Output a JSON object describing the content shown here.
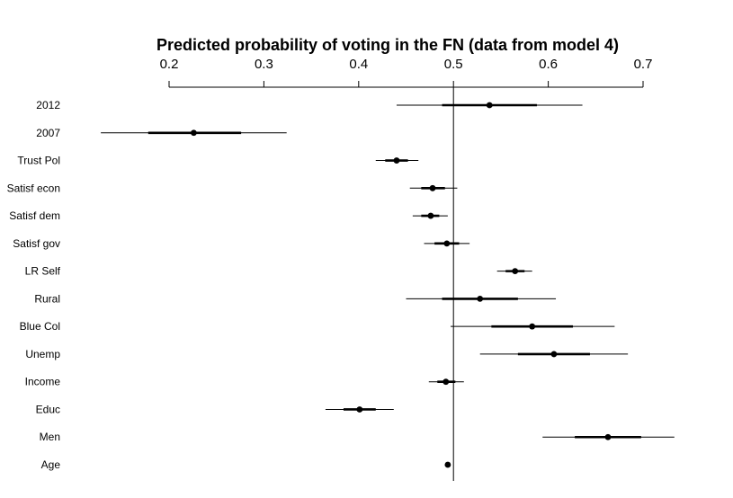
{
  "chart_data": {
    "type": "scatter",
    "subtype": "coefficient-plot",
    "title": "Predicted probability of voting in the FN (data from model 4)",
    "xlim": [
      0.2,
      0.7
    ],
    "xticks": [
      0.2,
      0.3,
      0.4,
      0.5,
      0.6,
      0.7
    ],
    "tick_labels": [
      "0.2",
      "0.3",
      "0.4",
      "0.5",
      "0.6",
      "0.7"
    ],
    "x_axis_position": "top",
    "reference_line": 0.5,
    "grid": false,
    "legend": "none",
    "colors": {
      "marks": "#000000"
    },
    "rows": [
      {
        "label": "2012",
        "estimate": 0.538,
        "ci_inner": [
          0.488,
          0.588
        ],
        "ci_outer": [
          0.44,
          0.636
        ]
      },
      {
        "label": "2007",
        "estimate": 0.226,
        "ci_inner": [
          0.178,
          0.276
        ],
        "ci_outer": [
          0.128,
          0.324
        ]
      },
      {
        "label": "Trust Pol",
        "estimate": 0.44,
        "ci_inner": [
          0.428,
          0.452
        ],
        "ci_outer": [
          0.418,
          0.463
        ]
      },
      {
        "label": "Satisf econ",
        "estimate": 0.478,
        "ci_inner": [
          0.466,
          0.491
        ],
        "ci_outer": [
          0.454,
          0.504
        ]
      },
      {
        "label": "Satisf dem",
        "estimate": 0.476,
        "ci_inner": [
          0.466,
          0.485
        ],
        "ci_outer": [
          0.457,
          0.494
        ]
      },
      {
        "label": "Satisf gov",
        "estimate": 0.493,
        "ci_inner": [
          0.48,
          0.506
        ],
        "ci_outer": [
          0.469,
          0.517
        ]
      },
      {
        "label": "LR Self",
        "estimate": 0.565,
        "ci_inner": [
          0.555,
          0.575
        ],
        "ci_outer": [
          0.546,
          0.583
        ]
      },
      {
        "label": "Rural",
        "estimate": 0.528,
        "ci_inner": [
          0.488,
          0.568
        ],
        "ci_outer": [
          0.45,
          0.608
        ]
      },
      {
        "label": "Blue Col",
        "estimate": 0.583,
        "ci_inner": [
          0.54,
          0.626
        ],
        "ci_outer": [
          0.497,
          0.67
        ]
      },
      {
        "label": "Unemp",
        "estimate": 0.606,
        "ci_inner": [
          0.568,
          0.644
        ],
        "ci_outer": [
          0.528,
          0.684
        ]
      },
      {
        "label": "Income",
        "estimate": 0.492,
        "ci_inner": [
          0.483,
          0.502
        ],
        "ci_outer": [
          0.474,
          0.511
        ]
      },
      {
        "label": "Educ",
        "estimate": 0.401,
        "ci_inner": [
          0.384,
          0.418
        ],
        "ci_outer": [
          0.365,
          0.437
        ]
      },
      {
        "label": "Men",
        "estimate": 0.663,
        "ci_inner": [
          0.628,
          0.698
        ],
        "ci_outer": [
          0.594,
          0.733
        ]
      },
      {
        "label": "Age",
        "estimate": 0.494,
        "ci_inner": [
          0.492,
          0.496
        ],
        "ci_outer": [
          0.491,
          0.497
        ]
      }
    ]
  }
}
